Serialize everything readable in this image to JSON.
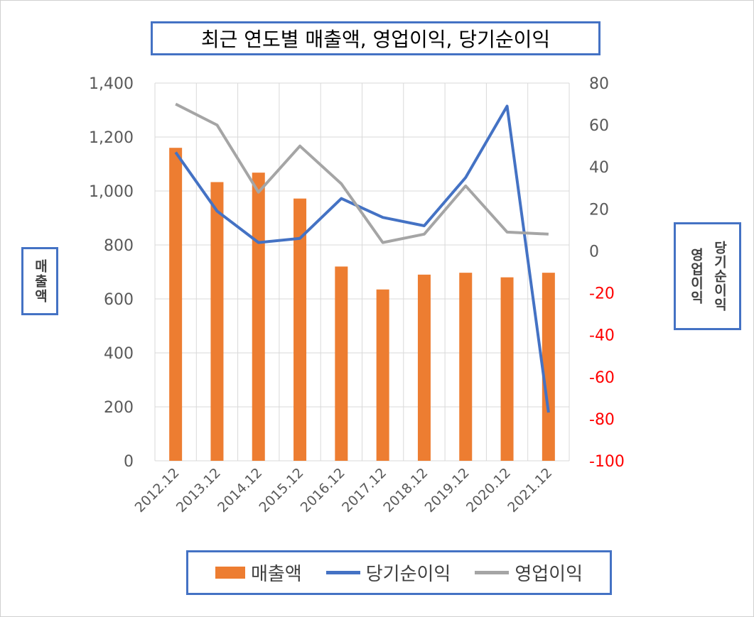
{
  "chart_data": {
    "type": "bar+line",
    "title": "최근 연도별 매출액, 영업이익, 당기순이익",
    "categories": [
      "2012.12",
      "2013.12",
      "2014.12",
      "2015.12",
      "2016.12",
      "2017.12",
      "2018.12",
      "2019.12",
      "2020.12",
      "2021.12"
    ],
    "ylabel_left": "매출액",
    "ylabel_right": [
      "당기순이익",
      "영업이익"
    ],
    "ylim_left": [
      0,
      1400
    ],
    "ylim_right": [
      -100,
      80
    ],
    "yticks_left": [
      "0",
      "200",
      "400",
      "600",
      "800",
      "1,000",
      "1,200",
      "1,400"
    ],
    "yticks_right": [
      "-100",
      "-80",
      "-60",
      "-40",
      "-20",
      "0",
      "20",
      "40",
      "60",
      "80"
    ],
    "grid": "vertical and horizontal",
    "legend_position": "bottom",
    "series": [
      {
        "name": "매출액",
        "type": "bar",
        "axis": "left",
        "color": "#ed7d31",
        "values": [
          1160,
          1033,
          1068,
          972,
          720,
          635,
          690,
          697,
          680,
          697
        ]
      },
      {
        "name": "당기순이익",
        "type": "line",
        "axis": "right",
        "color": "#4472c4",
        "values": [
          47,
          19,
          4,
          6,
          25,
          16,
          12,
          35,
          69,
          -77
        ]
      },
      {
        "name": "영업이익",
        "type": "line",
        "axis": "right",
        "color": "#a5a5a5",
        "values": [
          70,
          60,
          28,
          50,
          32,
          4,
          8,
          31,
          9,
          8
        ]
      }
    ],
    "negative_tick_color": "#ff0000"
  },
  "legend": {
    "bar_label": "매출액",
    "line1_label": "당기순이익",
    "line2_label": "영업이익"
  }
}
